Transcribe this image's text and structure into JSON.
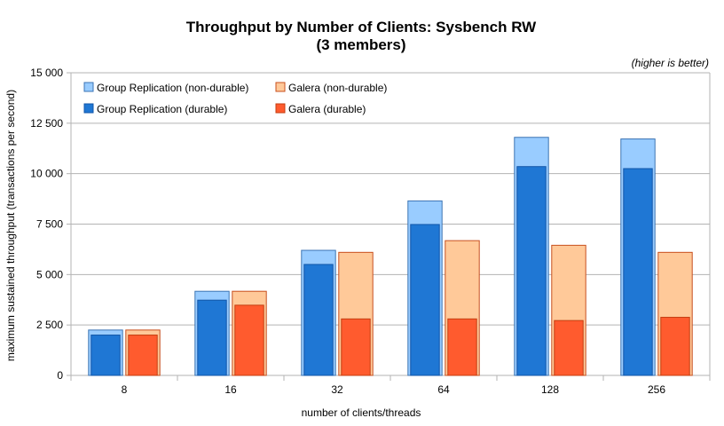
{
  "chart_data": {
    "type": "bar",
    "title_line1": "Throughput by Number of Clients: Sysbench RW",
    "title_line2": "(3 members)",
    "annotation": "(higher is better)",
    "xlabel": "number of clients/threads",
    "ylabel": "maximum sustained throughput (transactions per second)",
    "ylim": [
      0,
      15000
    ],
    "yticks": [
      0,
      2500,
      5000,
      7500,
      10000,
      12500,
      15000
    ],
    "ytick_labels": [
      "0",
      "2 500",
      "5 000",
      "7 500",
      "10 000",
      "12 500",
      "15 000"
    ],
    "categories": [
      "8",
      "16",
      "32",
      "64",
      "128",
      "256"
    ],
    "grid": true,
    "legend_position": "top-left",
    "series": [
      {
        "name": "Group Replication (non-durable)",
        "color": "#99ccff",
        "stroke": "#3c74b4",
        "values": [
          2250,
          4170,
          6200,
          8650,
          11800,
          11720
        ]
      },
      {
        "name": "Group Replication (durable)",
        "color": "#1f77d4",
        "stroke": "#1256a8",
        "values": [
          2000,
          3730,
          5500,
          7480,
          10350,
          10250
        ]
      },
      {
        "name": "Galera (non-durable)",
        "color": "#ffc999",
        "stroke": "#c8501e",
        "values": [
          2250,
          4170,
          6100,
          6680,
          6450,
          6100
        ]
      },
      {
        "name": "Galera (durable)",
        "color": "#ff5b2e",
        "stroke": "#c43d10",
        "values": [
          2000,
          3480,
          2800,
          2800,
          2720,
          2880
        ]
      }
    ]
  }
}
